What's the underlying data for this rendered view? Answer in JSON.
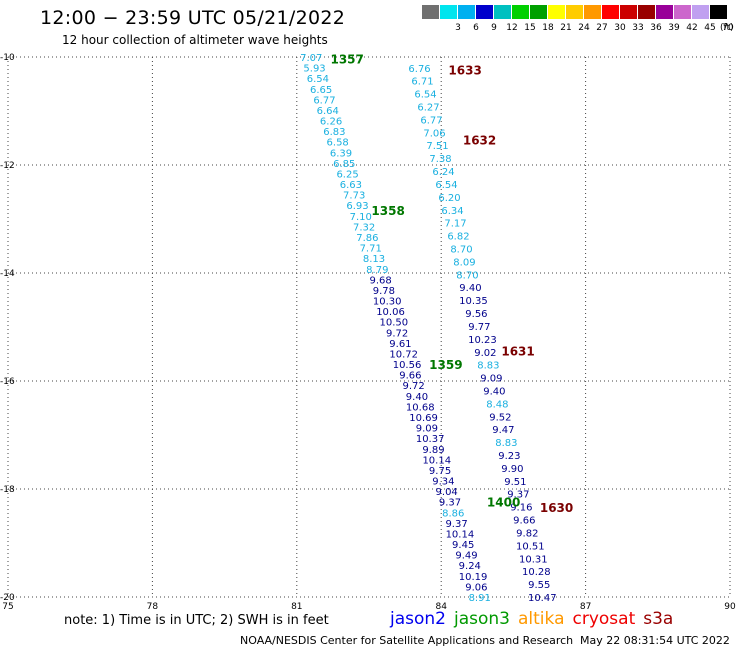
{
  "header": {
    "title": "12:00 − 23:59 UTC 05/21/2022",
    "subtitle": "12 hour collection of altimeter wave heights"
  },
  "legend": {
    "units": "(ft)",
    "bins": [
      {
        "color": "#707070",
        "label": ""
      },
      {
        "color": "#00e5ee",
        "label": "3"
      },
      {
        "color": "#00b0f0",
        "label": "6"
      },
      {
        "color": "#0000cc",
        "label": "9"
      },
      {
        "color": "#00c0c0",
        "label": "12"
      },
      {
        "color": "#00d000",
        "label": "15"
      },
      {
        "color": "#00a000",
        "label": "18"
      },
      {
        "color": "#ffff00",
        "label": "21"
      },
      {
        "color": "#ffcc00",
        "label": "24"
      },
      {
        "color": "#ff9900",
        "label": "27"
      },
      {
        "color": "#ff0000",
        "label": "30"
      },
      {
        "color": "#cc0000",
        "label": "33"
      },
      {
        "color": "#990000",
        "label": "36"
      },
      {
        "color": "#990099",
        "label": "39"
      },
      {
        "color": "#cc66cc",
        "label": "42"
      },
      {
        "color": "#c0a0f0",
        "label": "45"
      },
      {
        "color": "#000000",
        "label": "70"
      }
    ]
  },
  "map": {
    "lon_min": 75,
    "lon_max": 90,
    "lat_min": -20,
    "lat_max": -10,
    "lon_ticks": [
      "75",
      "78",
      "81",
      "84",
      "87",
      "90"
    ],
    "lat_ticks": [
      "-10",
      "-12",
      "-14",
      "-16",
      "-18",
      "-20"
    ],
    "colors": {
      "light": "#1ab0e0",
      "dark": "#00008b",
      "pass_green": "#007700",
      "pass_dark": "#7a0000"
    }
  },
  "tracks": [
    {
      "name": "pass-1357-1359-1400",
      "lon_start": 81.3,
      "lat_start": -10.0,
      "lon_end": 84.8,
      "lat_end": -20.0,
      "values": [
        {
          "v": "7.07",
          "c": "light"
        },
        {
          "v": "5.93",
          "c": "light"
        },
        {
          "v": "6.54",
          "c": "light"
        },
        {
          "v": "6.65",
          "c": "light"
        },
        {
          "v": "6.77",
          "c": "light"
        },
        {
          "v": "6.64",
          "c": "light"
        },
        {
          "v": "6.26",
          "c": "light"
        },
        {
          "v": "6.83",
          "c": "light"
        },
        {
          "v": "6.58",
          "c": "light"
        },
        {
          "v": "6.39",
          "c": "light"
        },
        {
          "v": "6.85",
          "c": "light"
        },
        {
          "v": "6.25",
          "c": "light"
        },
        {
          "v": "6.63",
          "c": "light"
        },
        {
          "v": "7.73",
          "c": "light"
        },
        {
          "v": "6.93",
          "c": "light"
        },
        {
          "v": "7.10",
          "c": "light"
        },
        {
          "v": "7.32",
          "c": "light"
        },
        {
          "v": "7.86",
          "c": "light"
        },
        {
          "v": "7.71",
          "c": "light"
        },
        {
          "v": "8.13",
          "c": "light"
        },
        {
          "v": "8.79",
          "c": "light"
        },
        {
          "v": "9.68",
          "c": "dark"
        },
        {
          "v": "9.78",
          "c": "dark"
        },
        {
          "v": "10.30",
          "c": "dark"
        },
        {
          "v": "10.06",
          "c": "dark"
        },
        {
          "v": "10.50",
          "c": "dark"
        },
        {
          "v": "9.72",
          "c": "dark"
        },
        {
          "v": "9.61",
          "c": "dark"
        },
        {
          "v": "10.72",
          "c": "dark"
        },
        {
          "v": "10.56",
          "c": "dark"
        },
        {
          "v": "9.66",
          "c": "dark"
        },
        {
          "v": "9.72",
          "c": "dark"
        },
        {
          "v": "9.40",
          "c": "dark"
        },
        {
          "v": "10.68",
          "c": "dark"
        },
        {
          "v": "10.69",
          "c": "dark"
        },
        {
          "v": "9.09",
          "c": "dark"
        },
        {
          "v": "10.37",
          "c": "dark"
        },
        {
          "v": "9.89",
          "c": "dark"
        },
        {
          "v": "10.14",
          "c": "dark"
        },
        {
          "v": "9.75",
          "c": "dark"
        },
        {
          "v": "9.34",
          "c": "dark"
        },
        {
          "v": "9.04",
          "c": "dark"
        },
        {
          "v": "9.37",
          "c": "dark"
        },
        {
          "v": "8.86",
          "c": "light"
        },
        {
          "v": "9.37",
          "c": "dark"
        },
        {
          "v": "10.14",
          "c": "dark"
        },
        {
          "v": "9.45",
          "c": "dark"
        },
        {
          "v": "9.49",
          "c": "dark"
        },
        {
          "v": "9.24",
          "c": "dark"
        },
        {
          "v": "10.19",
          "c": "dark"
        },
        {
          "v": "9.06",
          "c": "dark"
        },
        {
          "v": "8.91",
          "c": "light"
        }
      ]
    },
    {
      "name": "pass-1630-1633",
      "lon_start": 83.55,
      "lat_start": -10.2,
      "lon_end": 86.1,
      "lat_end": -20.0,
      "values": [
        {
          "v": "6.76",
          "c": "light"
        },
        {
          "v": "6.71",
          "c": "light"
        },
        {
          "v": "6.54",
          "c": "light"
        },
        {
          "v": "6.27",
          "c": "light"
        },
        {
          "v": "6.77",
          "c": "light"
        },
        {
          "v": "7.06",
          "c": "light"
        },
        {
          "v": "7.51",
          "c": "light"
        },
        {
          "v": "7.38",
          "c": "light"
        },
        {
          "v": "6.24",
          "c": "light"
        },
        {
          "v": "6.54",
          "c": "light"
        },
        {
          "v": "6.20",
          "c": "light"
        },
        {
          "v": "6.34",
          "c": "light"
        },
        {
          "v": "7.17",
          "c": "light"
        },
        {
          "v": "6.82",
          "c": "light"
        },
        {
          "v": "8.70",
          "c": "light"
        },
        {
          "v": "8.09",
          "c": "light"
        },
        {
          "v": "8.70",
          "c": "light"
        },
        {
          "v": "9.40",
          "c": "dark"
        },
        {
          "v": "10.35",
          "c": "dark"
        },
        {
          "v": "9.56",
          "c": "dark"
        },
        {
          "v": "9.77",
          "c": "dark"
        },
        {
          "v": "10.23",
          "c": "dark"
        },
        {
          "v": "9.02",
          "c": "dark"
        },
        {
          "v": "8.83",
          "c": "light"
        },
        {
          "v": "9.09",
          "c": "dark"
        },
        {
          "v": "9.40",
          "c": "dark"
        },
        {
          "v": "8.48",
          "c": "light"
        },
        {
          "v": "9.52",
          "c": "dark"
        },
        {
          "v": "9.47",
          "c": "dark"
        },
        {
          "v": "8.83",
          "c": "light"
        },
        {
          "v": "9.23",
          "c": "dark"
        },
        {
          "v": "9.90",
          "c": "dark"
        },
        {
          "v": "9.51",
          "c": "dark"
        },
        {
          "v": "9.37",
          "c": "dark"
        },
        {
          "v": "9.16",
          "c": "dark"
        },
        {
          "v": "9.66",
          "c": "dark"
        },
        {
          "v": "9.82",
          "c": "dark"
        },
        {
          "v": "10.51",
          "c": "dark"
        },
        {
          "v": "10.31",
          "c": "dark"
        },
        {
          "v": "10.28",
          "c": "dark"
        },
        {
          "v": "9.55",
          "c": "dark"
        },
        {
          "v": "10.47",
          "c": "dark"
        }
      ]
    }
  ],
  "pass_labels": [
    {
      "text": "1357",
      "lon": 81.7,
      "lat": -10.05,
      "c": "pass_green"
    },
    {
      "text": "1633",
      "lon": 84.15,
      "lat": -10.25,
      "c": "pass_dark"
    },
    {
      "text": "1632",
      "lon": 84.45,
      "lat": -11.55,
      "c": "pass_dark"
    },
    {
      "text": "1358",
      "lon": 82.55,
      "lat": -12.85,
      "c": "pass_green"
    },
    {
      "text": "1631",
      "lon": 85.25,
      "lat": -15.45,
      "c": "pass_dark"
    },
    {
      "text": "1359",
      "lon": 83.75,
      "lat": -15.7,
      "c": "pass_green"
    },
    {
      "text": "1400",
      "lon": 84.95,
      "lat": -18.25,
      "c": "pass_green"
    },
    {
      "text": "1630",
      "lon": 86.05,
      "lat": -18.35,
      "c": "pass_dark"
    }
  ],
  "footer": {
    "note": "note:  1) Time is in UTC; 2) SWH is in feet",
    "satellites": [
      {
        "name": "jason2",
        "color": "#0000ee"
      },
      {
        "name": "jason3",
        "color": "#009900"
      },
      {
        "name": "altika",
        "color": "#ff9900"
      },
      {
        "name": "cryosat",
        "color": "#ee0000"
      },
      {
        "name": "s3a",
        "color": "#990000"
      }
    ],
    "credit": "NOAA/NESDIS Center for Satellite Applications and Research",
    "timestamp": "May 22 08:31:54 UTC 2022"
  }
}
